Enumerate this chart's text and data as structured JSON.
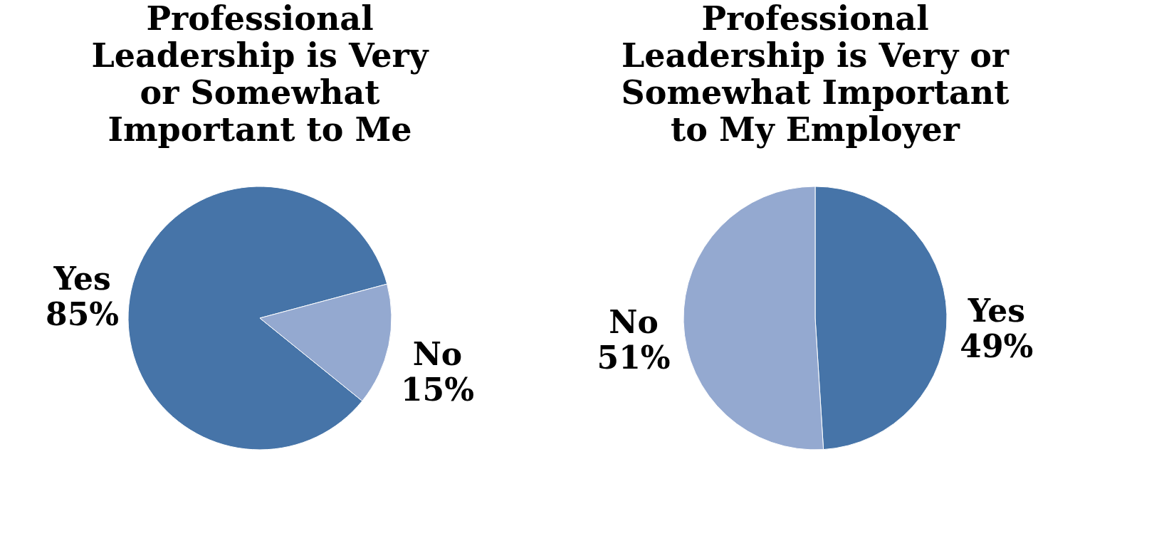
{
  "chart_data": [
    {
      "type": "pie",
      "title": "Professional\nLeadership is Very\nor Somewhat\nImportant to Me",
      "categories": [
        "Yes",
        "No"
      ],
      "values": [
        85,
        15
      ],
      "colors": [
        "#4674a8",
        "#94a9d0"
      ],
      "value_labels": [
        "85%",
        "15%"
      ]
    },
    {
      "type": "pie",
      "title": "Professional\nLeadership is Very or\nSomewhat Important\nto My Employer",
      "categories": [
        "Yes",
        "No"
      ],
      "values": [
        49,
        51
      ],
      "colors": [
        "#4674a8",
        "#94a9d0"
      ],
      "value_labels": [
        "49%",
        "51%"
      ]
    }
  ]
}
